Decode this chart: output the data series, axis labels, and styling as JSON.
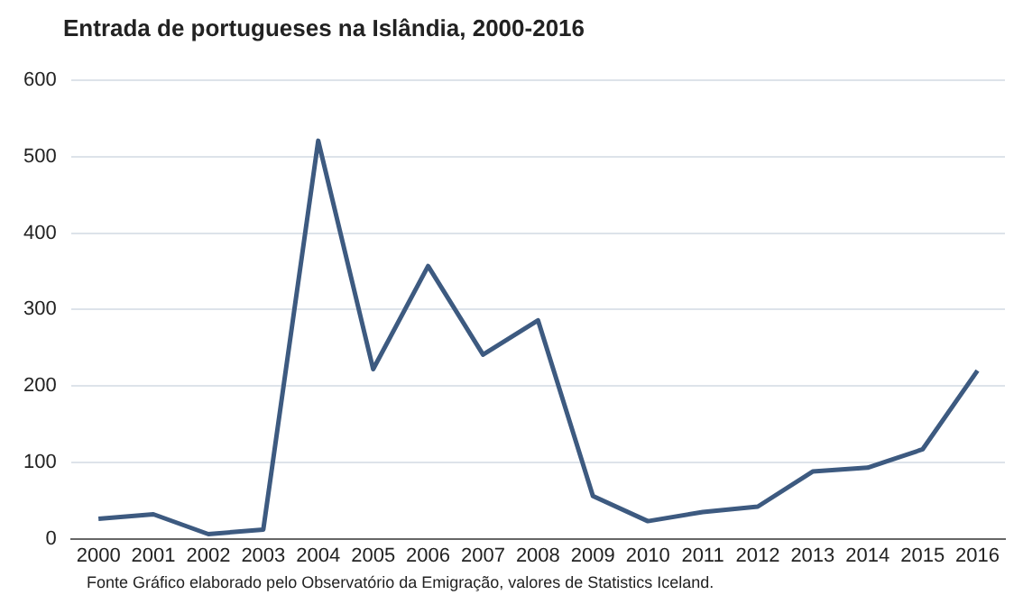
{
  "chart_data": {
    "type": "line",
    "title": "Entrada de portugueses na Islândia, 2000-2016",
    "categories": [
      "2000",
      "2001",
      "2002",
      "2003",
      "2004",
      "2005",
      "2006",
      "2007",
      "2008",
      "2009",
      "2010",
      "2011",
      "2012",
      "2013",
      "2014",
      "2015",
      "2016"
    ],
    "series": [
      {
        "color": "#3d5a80",
        "values": [
          26,
          32,
          6,
          12,
          521,
          222,
          357,
          241,
          286,
          56,
          23,
          35,
          42,
          88,
          93,
          117,
          220
        ]
      }
    ],
    "ylim": [
      0,
      600
    ],
    "yticks": [
      0,
      100,
      200,
      300,
      400,
      500,
      600
    ],
    "grid": "y",
    "marker": "none",
    "line_style": "solid",
    "legend": false,
    "annotations": [
      "Fonte  Gráfico elaborado pelo Observatório da Emigração, valores de Statistics Iceland."
    ]
  }
}
